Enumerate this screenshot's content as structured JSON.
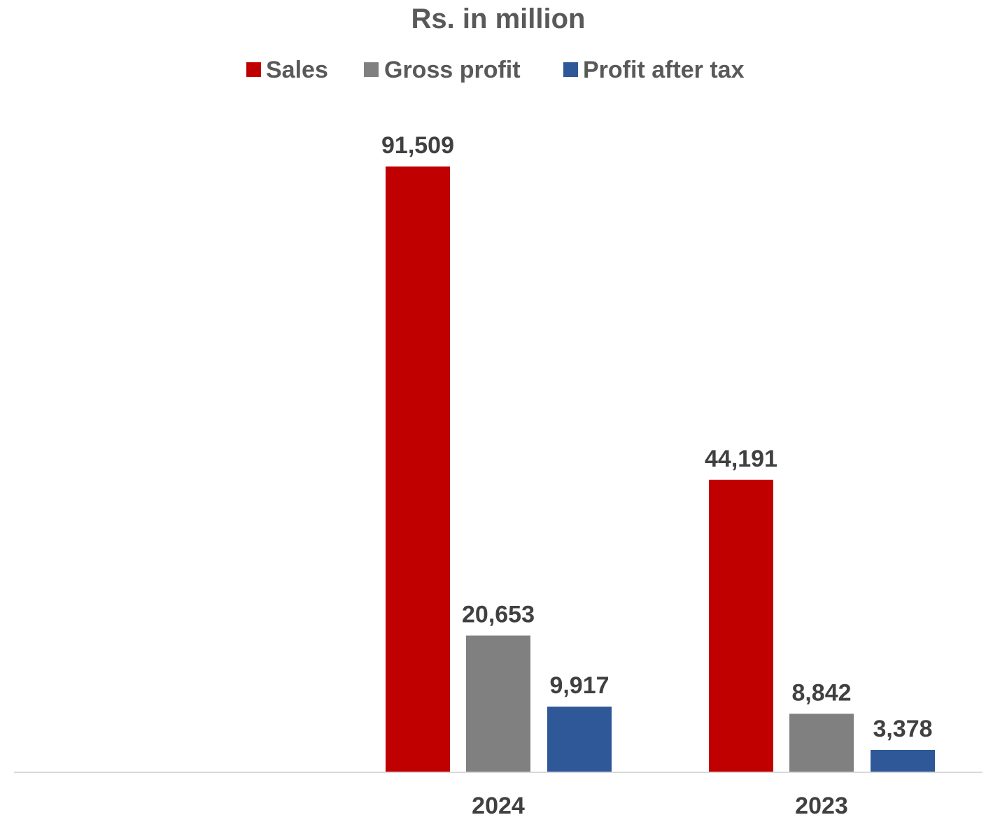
{
  "chart_data": {
    "type": "bar",
    "title": "Rs. in million",
    "xlabel": "",
    "ylabel": "",
    "categories": [
      "",
      "2024",
      "2023"
    ],
    "series": [
      {
        "name": "Sales",
        "color": "#C00000",
        "values": [
          null,
          91509,
          44191
        ],
        "labels": [
          "",
          "91,509",
          "44,191"
        ]
      },
      {
        "name": "Gross profit",
        "color": "#808080",
        "values": [
          null,
          20653,
          8842
        ],
        "labels": [
          "",
          "20,653",
          "8,842"
        ]
      },
      {
        "name": "Profit after tax",
        "color": "#2E5897",
        "values": [
          null,
          9917,
          3378
        ],
        "labels": [
          "",
          "9,917",
          "3,378"
        ]
      }
    ],
    "ylim": [
      0,
      100000
    ],
    "grid": false,
    "legend": "top",
    "axis_color": "#D9D9D9"
  }
}
